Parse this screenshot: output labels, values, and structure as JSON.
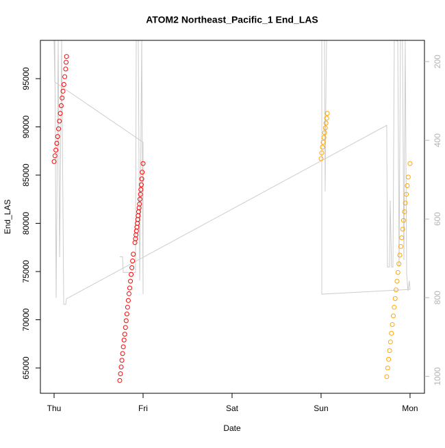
{
  "chart_data": {
    "type": "scatter",
    "title": "ATOM2 Northeast_Pacific_1 End_LAS",
    "x_label": "Date",
    "y_label": "End_LAS",
    "xlim": [
      -0.154,
      4.162
    ],
    "xticks": [
      {
        "value": 0,
        "label": "Thu"
      },
      {
        "value": 1,
        "label": "Fri"
      },
      {
        "value": 2,
        "label": "Sat"
      },
      {
        "value": 3,
        "label": "Sun"
      },
      {
        "value": 4,
        "label": "Mon"
      }
    ],
    "ylim": [
      62376,
      98972
    ],
    "yticks": [
      65000,
      70000,
      75000,
      80000,
      85000,
      90000,
      95000
    ],
    "y2lim": [
      1043,
      146
    ],
    "y2ticks": [
      200,
      400,
      600,
      800,
      1000
    ],
    "y2_color": "#b3b3b3",
    "series": [
      {
        "type": "scatter",
        "color": "#ff0000",
        "x": [
          0,
          0.01,
          0.02,
          0.03,
          0.04,
          0.05,
          0.06,
          0.07,
          0.08,
          0.09,
          0.1,
          0.11,
          0.12,
          0.13,
          0.135,
          0.14,
          0.738,
          0.746,
          0.754,
          0.762,
          0.77,
          0.778,
          0.786,
          0.794,
          0.802,
          0.81,
          0.818,
          0.826,
          0.834,
          0.842,
          0.85,
          0.858,
          0.866,
          0.874,
          0.882,
          0.89,
          0.908,
          0.915,
          0.92,
          0.925,
          0.93,
          0.935,
          0.94,
          0.945,
          0.95,
          0.955,
          0.96,
          0.965,
          0.97,
          0.975,
          0.98,
          0.985,
          0.99,
          1.0
        ],
        "values": [
          86400,
          87000,
          87600,
          88300,
          89000,
          89800,
          90600,
          91400,
          92200,
          93000,
          93700,
          94400,
          95200,
          96000,
          96700,
          97300,
          63700,
          64400,
          65100,
          65800,
          66500,
          67200,
          67900,
          68500,
          69200,
          69900,
          70600,
          71300,
          72000,
          72700,
          73300,
          74000,
          74700,
          75400,
          76100,
          76800,
          78000,
          78400,
          78800,
          79200,
          79600,
          80000,
          80400,
          80800,
          81200,
          81600,
          82000,
          82500,
          83000,
          83500,
          84000,
          84600,
          85300,
          86200
        ]
      },
      {
        "type": "scatter",
        "color": "#ffa500",
        "x": [
          3.0,
          3.008,
          3.016,
          3.024,
          3.032,
          3.04,
          3.048,
          3.056,
          3.064,
          3.07,
          3.738,
          3.749,
          3.759,
          3.77,
          3.78,
          3.791,
          3.801,
          3.812,
          3.822,
          3.833,
          3.843,
          3.854,
          3.864,
          3.875,
          3.885,
          3.896,
          3.906,
          3.917,
          3.927,
          3.938,
          3.948,
          3.959,
          3.969,
          3.98,
          4.0
        ],
        "values": [
          86700,
          87300,
          87900,
          88400,
          88900,
          89400,
          89900,
          90400,
          90900,
          91400,
          64100,
          65000,
          65900,
          66800,
          67700,
          68600,
          69500,
          70400,
          71300,
          72200,
          73100,
          74000,
          74900,
          75800,
          76700,
          77600,
          78500,
          79400,
          80300,
          81200,
          82100,
          83000,
          83900,
          84800,
          86200
        ]
      },
      {
        "type": "line",
        "axis": "y2",
        "color": "#cccccc",
        "x": [
          0,
          0.008,
          1.0,
          1.0,
          0.985,
          0.962,
          0.946,
          0.923,
          0.915,
          0.777,
          0.769,
          0.738,
          null,
          0.008,
          0.023,
          0.046,
          0.062,
          0.085,
          0.108,
          0.131,
          0.138,
          3.738,
          3.746,
          3.769,
          3.777,
          3.792,
          3.808,
          3.823,
          3.838,
          3.862,
          3.877,
          3.892,
          3.915,
          3.931,
          3.946,
          3.962,
          3.977,
          3.992,
          4.0,
          3.008,
          3.008,
          3.038,
          3.046,
          3.054,
          3.062
        ],
        "values": [
          146,
          252,
          405,
          791,
          146,
          757,
          146,
          146,
          736,
          736,
          696,
          696,
          null,
          146,
          800,
          146,
          697,
          146,
          817,
          817,
          803,
          362,
          722,
          722,
          553,
          722,
          722,
          146,
          146,
          148,
          722,
          146,
          146,
          704,
          146,
          739,
          783,
          757,
          779,
          791,
          146,
          146,
          530,
          304,
          146
        ]
      }
    ]
  }
}
